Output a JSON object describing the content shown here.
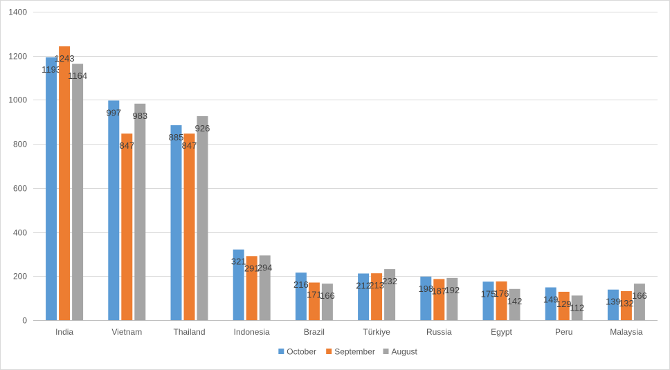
{
  "chart_data": {
    "type": "bar",
    "title": "",
    "xlabel": "",
    "ylabel": "",
    "categories": [
      "India",
      "Vietnam",
      "Thailand",
      "Indonesia",
      "Brazil",
      "Türkiye",
      "Russia",
      "Egypt",
      "Peru",
      "Malaysia"
    ],
    "series": [
      {
        "name": "October",
        "color": "#5b9bd5",
        "values": [
          1193,
          997,
          885,
          321,
          216,
          212,
          198,
          175,
          149,
          139
        ]
      },
      {
        "name": "September",
        "color": "#ed7d31",
        "values": [
          1243,
          847,
          847,
          291,
          171,
          213,
          187,
          176,
          129,
          132
        ]
      },
      {
        "name": "August",
        "color": "#a5a5a5",
        "values": [
          1164,
          983,
          926,
          294,
          166,
          232,
          192,
          142,
          112,
          166
        ]
      }
    ],
    "ylim": [
      0,
      1400
    ],
    "yticks": [
      0,
      200,
      400,
      600,
      800,
      1000,
      1200,
      1400
    ],
    "grid": true,
    "legend_position": "bottom"
  }
}
